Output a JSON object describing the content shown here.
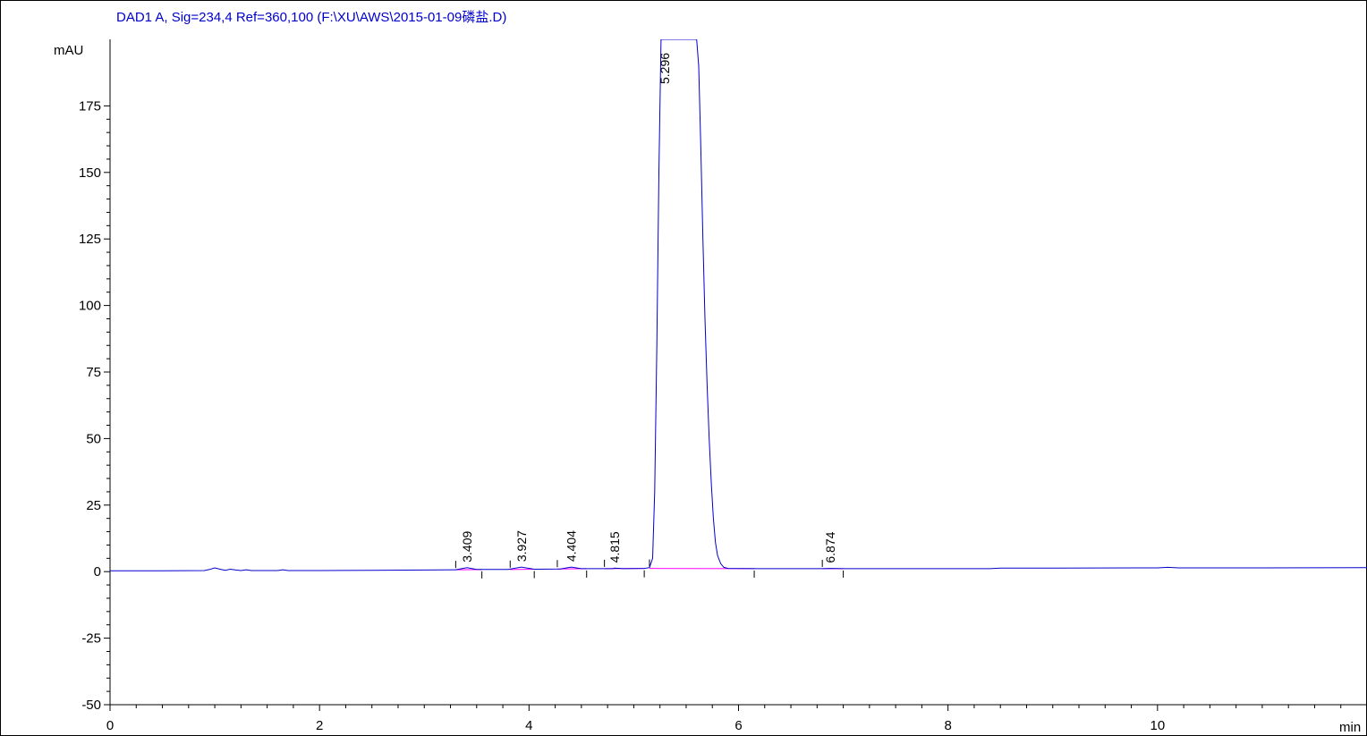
{
  "chart_data": {
    "type": "line",
    "title": "DAD1 A, Sig=234,4 Ref=360,100 (F:\\XU\\AWS\\2015-01-09磷盐.D)",
    "xlabel": "min",
    "ylabel": "mAU",
    "xlim": [
      0,
      12
    ],
    "ylim": [
      -50,
      200
    ],
    "x_ticks": [
      0,
      2,
      4,
      6,
      8,
      10
    ],
    "y_ticks": [
      -50,
      -25,
      0,
      25,
      50,
      75,
      100,
      125,
      150,
      175
    ],
    "grid": false,
    "colors": {
      "signal": "#0000cc",
      "baseline": "#ff00ff",
      "title": "#0000cc"
    },
    "series": [
      {
        "points": [
          [
            0,
            0.3
          ],
          [
            0.5,
            0.3
          ],
          [
            0.9,
            0.4
          ],
          [
            0.95,
            0.8
          ],
          [
            1.0,
            1.4
          ],
          [
            1.05,
            0.9
          ],
          [
            1.1,
            0.5
          ],
          [
            1.15,
            0.9
          ],
          [
            1.2,
            0.6
          ],
          [
            1.25,
            0.4
          ],
          [
            1.3,
            0.7
          ],
          [
            1.35,
            0.4
          ],
          [
            1.6,
            0.4
          ],
          [
            1.65,
            0.7
          ],
          [
            1.7,
            0.4
          ],
          [
            2.0,
            0.4
          ],
          [
            2.5,
            0.5
          ],
          [
            3.0,
            0.6
          ],
          [
            3.3,
            0.7
          ],
          [
            3.409,
            1.5
          ],
          [
            3.5,
            0.8
          ],
          [
            3.8,
            0.8
          ],
          [
            3.927,
            1.7
          ],
          [
            4.05,
            0.9
          ],
          [
            4.3,
            1.0
          ],
          [
            4.404,
            1.7
          ],
          [
            4.5,
            1.1
          ],
          [
            4.8,
            1.1
          ],
          [
            4.815,
            1.3
          ],
          [
            4.9,
            1.1
          ],
          [
            5.1,
            1.2
          ],
          [
            5.15,
            1.5
          ],
          [
            5.18,
            5
          ],
          [
            5.2,
            30
          ],
          [
            5.22,
            85
          ],
          [
            5.24,
            150
          ],
          [
            5.26,
            200
          ],
          [
            5.3,
            200
          ],
          [
            5.6,
            200
          ],
          [
            5.62,
            190
          ],
          [
            5.64,
            160
          ],
          [
            5.66,
            125
          ],
          [
            5.68,
            95
          ],
          [
            5.7,
            70
          ],
          [
            5.72,
            50
          ],
          [
            5.74,
            33
          ],
          [
            5.76,
            20
          ],
          [
            5.78,
            11
          ],
          [
            5.8,
            6
          ],
          [
            5.83,
            3
          ],
          [
            5.86,
            1.6
          ],
          [
            5.9,
            1.2
          ],
          [
            6.2,
            1.1
          ],
          [
            6.8,
            1.1
          ],
          [
            6.874,
            1.2
          ],
          [
            7.0,
            1.1
          ],
          [
            8.0,
            1.1
          ],
          [
            8.4,
            1.1
          ],
          [
            8.5,
            1.3
          ],
          [
            9.0,
            1.3
          ],
          [
            10.0,
            1.4
          ],
          [
            10.1,
            1.6
          ],
          [
            10.2,
            1.4
          ],
          [
            11.0,
            1.4
          ],
          [
            12.0,
            1.5
          ]
        ]
      }
    ],
    "baselines": [
      [
        [
          3.3,
          0.7
        ],
        [
          3.55,
          0.8
        ]
      ],
      [
        [
          3.82,
          0.8
        ],
        [
          4.05,
          0.9
        ]
      ],
      [
        [
          4.27,
          1.0
        ],
        [
          4.55,
          1.1
        ]
      ],
      [
        [
          4.72,
          1.1
        ],
        [
          5.1,
          1.2
        ]
      ],
      [
        [
          5.15,
          1.2
        ],
        [
          6.15,
          1.1
        ]
      ],
      [
        [
          6.8,
          1.1
        ],
        [
          7.0,
          1.1
        ]
      ]
    ],
    "peak_labels": [
      {
        "rt": 3.409,
        "label": "3.409",
        "y": 1.5
      },
      {
        "rt": 3.927,
        "label": "3.927",
        "y": 1.7
      },
      {
        "rt": 4.404,
        "label": "4.404",
        "y": 1.7
      },
      {
        "rt": 4.815,
        "label": "4.815",
        "y": 1.3
      },
      {
        "rt": 5.296,
        "label": "5.296",
        "y": 200
      },
      {
        "rt": 6.874,
        "label": "6.874",
        "y": 1.2
      }
    ],
    "tick_labels_x": [
      "0",
      "2",
      "4",
      "6",
      "8",
      "10"
    ],
    "tick_labels_y": [
      "-50",
      "-25",
      "0",
      "25",
      "50",
      "75",
      "100",
      "125",
      "150",
      "175"
    ]
  }
}
